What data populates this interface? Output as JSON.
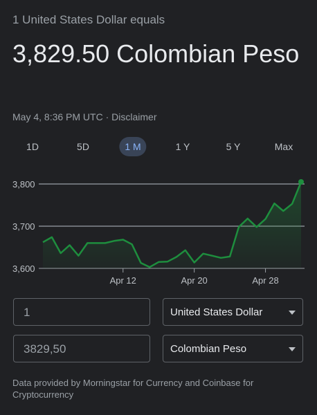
{
  "header": {
    "subtitle": "1 United States Dollar equals",
    "rate": "3,829.50 Colombian Peso",
    "timestamp": "May 4, 8:36 PM UTC · ",
    "disclaimer": "Disclaimer"
  },
  "ranges": [
    {
      "label": "1D",
      "active": false
    },
    {
      "label": "5D",
      "active": false
    },
    {
      "label": "1 M",
      "active": true
    },
    {
      "label": "1 Y",
      "active": false
    },
    {
      "label": "5 Y",
      "active": false
    },
    {
      "label": "Max",
      "active": false
    }
  ],
  "colors": {
    "line": "#1e8e3e",
    "grid": "#9aa0a6",
    "accent": "#8ab4f8"
  },
  "chart_data": {
    "type": "area",
    "ylim": [
      3600,
      3800
    ],
    "y_ticks": [
      "3,800",
      "3,700",
      "3,600"
    ],
    "y_tick_values": [
      3800,
      3700,
      3600
    ],
    "x_ticks": [
      "Apr 12",
      "Apr 20",
      "Apr 28"
    ],
    "x_tick_index": [
      9,
      17,
      25
    ],
    "values": [
      3662,
      3674,
      3636,
      3655,
      3630,
      3660,
      3660,
      3660,
      3665,
      3668,
      3657,
      3613,
      3603,
      3615,
      3616,
      3627,
      3643,
      3614,
      3635,
      3630,
      3625,
      3628,
      3698,
      3718,
      3698,
      3717,
      3754,
      3736,
      3753,
      3805
    ]
  },
  "converter": {
    "from_amount": "1",
    "from_currency": "United States Dollar",
    "to_amount": "3829,50",
    "to_currency": "Colombian Peso"
  },
  "footnote": "Data provided by Morningstar for Currency and Coinbase for Cryptocurrency"
}
